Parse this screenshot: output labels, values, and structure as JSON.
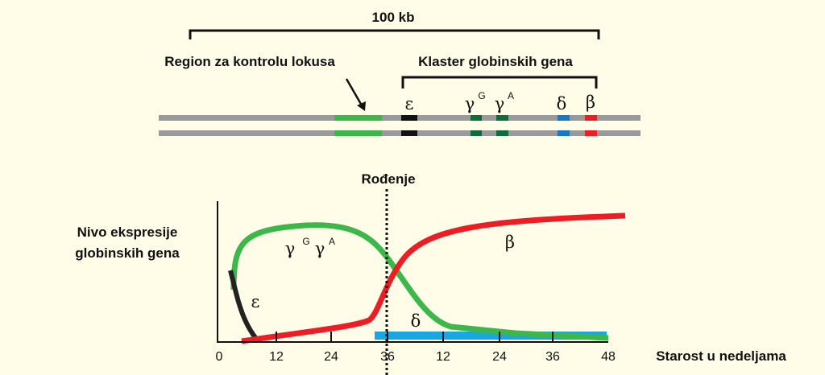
{
  "header": {
    "scale": "100 kb",
    "lcr_label": "Region za kontrolu lokusa",
    "cluster_label": "Klaster globinskih gena"
  },
  "genes": {
    "epsilon": "ε",
    "gamma": "γ",
    "g_sup": "G",
    "a_sup": "A",
    "delta": "δ",
    "beta": "β"
  },
  "plot": {
    "birth": "Rođenje",
    "y_label_1": "Nivo ekspresije",
    "y_label_2": "globinskih gena",
    "x_label": "Starost u nedeljama",
    "x_ticks": [
      "0",
      "12",
      "24",
      "36",
      "12",
      "24",
      "36",
      "48"
    ],
    "curve_labels": {
      "gamma": "γ",
      "g_sup": "G",
      "a_sup": "A",
      "epsilon": "ε",
      "beta": "β",
      "delta": "δ"
    }
  }
}
